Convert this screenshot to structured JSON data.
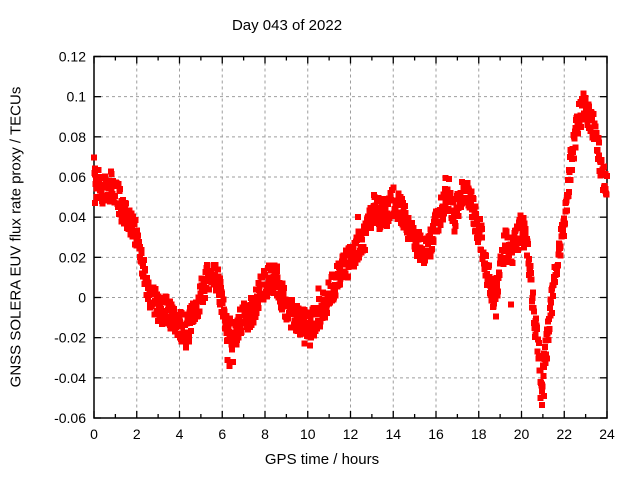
{
  "chart_data": {
    "type": "scatter",
    "title": "Day 043 of 2022",
    "xlabel": "GPS time / hours",
    "ylabel": "GNSS SOLERA EUV flux rate proxy / TECUs",
    "xlim": [
      0,
      24
    ],
    "ylim": [
      -0.06,
      0.12
    ],
    "xticks": [
      0,
      2,
      4,
      6,
      8,
      10,
      12,
      14,
      16,
      18,
      20,
      22,
      24
    ],
    "xtick_labels": [
      "0",
      "2",
      "4",
      "6",
      "8",
      "10",
      "12",
      "14",
      "16",
      "18",
      "20",
      "22",
      "24"
    ],
    "x_minor_ticks": [
      1,
      3,
      5,
      7,
      9,
      11,
      13,
      15,
      17,
      19,
      21,
      23
    ],
    "yticks": [
      -0.06,
      -0.04,
      -0.02,
      0,
      0.02,
      0.04,
      0.06,
      0.08,
      0.1,
      0.12
    ],
    "ytick_labels": [
      "-0.06",
      "-0.04",
      "-0.02",
      "0",
      "0.02",
      "0.04",
      "0.06",
      "0.08",
      "0.1",
      "0.12"
    ],
    "grid": true,
    "legend": "none",
    "marker": "filled-square",
    "colors": {
      "series": "#ff0000",
      "grid": "#9e9e9e",
      "axis": "#000000",
      "background": "#ffffff",
      "text": "#000000"
    },
    "series": [
      {
        "name": "EUV flux rate proxy",
        "style": "dense-point-band",
        "band_halfwidth": 0.0075,
        "anchors": [
          [
            0.0,
            0.068
          ],
          [
            0.1,
            0.06
          ],
          [
            0.2,
            0.057
          ],
          [
            0.35,
            0.053
          ],
          [
            0.5,
            0.054
          ],
          [
            0.65,
            0.052
          ],
          [
            0.8,
            0.056
          ],
          [
            1.0,
            0.054
          ],
          [
            1.2,
            0.048
          ],
          [
            1.5,
            0.04
          ],
          [
            1.8,
            0.035
          ],
          [
            2.0,
            0.03
          ],
          [
            2.2,
            0.019
          ],
          [
            2.5,
            0.005
          ],
          [
            2.8,
            -0.001
          ],
          [
            3.0,
            -0.006
          ],
          [
            3.2,
            -0.006
          ],
          [
            3.5,
            -0.008
          ],
          [
            3.8,
            -0.011
          ],
          [
            4.0,
            -0.013
          ],
          [
            4.3,
            -0.018
          ],
          [
            4.45,
            -0.014
          ],
          [
            4.7,
            -0.007
          ],
          [
            5.0,
            0.002
          ],
          [
            5.3,
            0.009
          ],
          [
            5.6,
            0.011
          ],
          [
            5.8,
            0.007
          ],
          [
            6.0,
            -0.002
          ],
          [
            6.2,
            -0.014
          ],
          [
            6.45,
            -0.02
          ],
          [
            6.7,
            -0.016
          ],
          [
            7.0,
            -0.01
          ],
          [
            7.3,
            -0.008
          ],
          [
            7.6,
            -0.002
          ],
          [
            7.9,
            0.006
          ],
          [
            8.2,
            0.009
          ],
          [
            8.5,
            0.007
          ],
          [
            8.8,
            0.001
          ],
          [
            9.1,
            -0.006
          ],
          [
            9.4,
            -0.011
          ],
          [
            9.7,
            -0.013
          ],
          [
            10.0,
            -0.014
          ],
          [
            10.3,
            -0.012
          ],
          [
            10.6,
            -0.007
          ],
          [
            10.9,
            -0.001
          ],
          [
            11.2,
            0.006
          ],
          [
            11.5,
            0.011
          ],
          [
            11.8,
            0.016
          ],
          [
            12.1,
            0.021
          ],
          [
            12.4,
            0.027
          ],
          [
            12.7,
            0.031
          ],
          [
            13.0,
            0.041
          ],
          [
            13.2,
            0.044
          ],
          [
            13.45,
            0.04
          ],
          [
            13.7,
            0.043
          ],
          [
            14.0,
            0.048
          ],
          [
            14.2,
            0.046
          ],
          [
            14.5,
            0.04
          ],
          [
            14.8,
            0.033
          ],
          [
            15.1,
            0.027
          ],
          [
            15.4,
            0.024
          ],
          [
            15.7,
            0.026
          ],
          [
            16.0,
            0.036
          ],
          [
            16.3,
            0.046
          ],
          [
            16.55,
            0.049
          ],
          [
            16.85,
            0.039
          ],
          [
            17.05,
            0.047
          ],
          [
            17.25,
            0.053
          ],
          [
            17.5,
            0.05
          ],
          [
            17.8,
            0.041
          ],
          [
            18.1,
            0.03
          ],
          [
            18.4,
            0.013
          ],
          [
            18.7,
            0.001
          ],
          [
            18.9,
            0.004
          ],
          [
            19.1,
            0.022
          ],
          [
            19.25,
            0.027
          ],
          [
            19.45,
            0.024
          ],
          [
            19.6,
            0.023
          ],
          [
            19.8,
            0.03
          ],
          [
            20.0,
            0.035
          ],
          [
            20.2,
            0.029
          ],
          [
            20.4,
            0.012
          ],
          [
            20.6,
            -0.01
          ],
          [
            20.8,
            -0.028
          ],
          [
            20.95,
            -0.043
          ],
          [
            21.1,
            -0.031
          ],
          [
            21.3,
            -0.013
          ],
          [
            21.5,
            0.008
          ],
          [
            21.7,
            0.02
          ],
          [
            21.9,
            0.03
          ],
          [
            22.1,
            0.045
          ],
          [
            22.3,
            0.066
          ],
          [
            22.5,
            0.078
          ],
          [
            22.7,
            0.09
          ],
          [
            22.9,
            0.095
          ],
          [
            23.05,
            0.092
          ],
          [
            23.2,
            0.088
          ],
          [
            23.4,
            0.083
          ],
          [
            23.6,
            0.073
          ],
          [
            23.8,
            0.06
          ],
          [
            24.0,
            0.055
          ]
        ],
        "outliers": [
          [
            0.05,
            0.047
          ],
          [
            0.12,
            0.05
          ],
          [
            4.3,
            -0.0235
          ],
          [
            4.45,
            -0.022
          ],
          [
            6.25,
            -0.031
          ],
          [
            6.35,
            -0.034
          ],
          [
            6.5,
            -0.032
          ],
          [
            8.45,
            0.016
          ],
          [
            8.55,
            0.0155
          ],
          [
            9.85,
            -0.023
          ],
          [
            10.1,
            -0.024
          ],
          [
            10.5,
            0.0045
          ],
          [
            12.35,
            0.04
          ],
          [
            13.1,
            0.051
          ],
          [
            16.45,
            0.0595
          ],
          [
            16.6,
            0.059
          ],
          [
            18.8,
            -0.0095
          ],
          [
            19.5,
            -0.0035
          ],
          [
            20.9,
            -0.05
          ],
          [
            20.97,
            -0.0535
          ],
          [
            21.05,
            -0.049
          ],
          [
            22.9,
            0.1015
          ]
        ]
      }
    ]
  }
}
